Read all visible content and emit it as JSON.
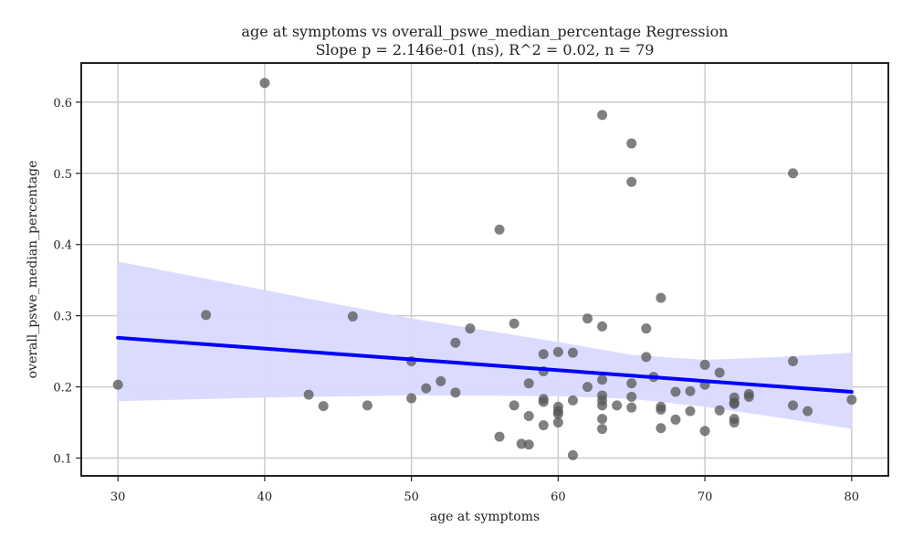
{
  "chart_data": {
    "type": "scatter",
    "title": "age at symptoms vs overall_pswe_median_percentage Regression",
    "subtitle": "Slope p = 2.146e-01 (ns), R^2 = 0.02, n = 79",
    "xlabel": "age at symptoms",
    "ylabel": "overall_pswe_median_percentage",
    "xlim": [
      27.5,
      82.5
    ],
    "ylim": [
      0.075,
      0.655
    ],
    "xticks": [
      "30",
      "40",
      "50",
      "60",
      "70",
      "80"
    ],
    "yticks": [
      "0.1",
      "0.2",
      "0.3",
      "0.4",
      "0.5",
      "0.6"
    ],
    "grid": true,
    "points": [
      [
        30,
        0.203
      ],
      [
        36,
        0.301
      ],
      [
        40,
        0.627
      ],
      [
        43,
        0.189
      ],
      [
        44,
        0.173
      ],
      [
        46,
        0.299
      ],
      [
        47,
        0.174
      ],
      [
        50,
        0.236
      ],
      [
        50,
        0.184
      ],
      [
        51,
        0.198
      ],
      [
        52,
        0.208
      ],
      [
        53,
        0.262
      ],
      [
        53,
        0.192
      ],
      [
        54,
        0.282
      ],
      [
        56,
        0.421
      ],
      [
        56,
        0.13
      ],
      [
        57,
        0.289
      ],
      [
        57,
        0.174
      ],
      [
        57.5,
        0.12
      ],
      [
        58,
        0.119
      ],
      [
        58,
        0.205
      ],
      [
        58,
        0.159
      ],
      [
        59,
        0.246
      ],
      [
        59,
        0.222
      ],
      [
        59,
        0.183
      ],
      [
        59,
        0.179
      ],
      [
        59,
        0.146
      ],
      [
        60,
        0.249
      ],
      [
        60,
        0.172
      ],
      [
        60,
        0.166
      ],
      [
        60,
        0.162
      ],
      [
        60,
        0.15
      ],
      [
        61,
        0.248
      ],
      [
        61,
        0.181
      ],
      [
        61,
        0.104
      ],
      [
        62,
        0.296
      ],
      [
        62,
        0.2
      ],
      [
        63,
        0.582
      ],
      [
        63,
        0.285
      ],
      [
        63,
        0.21
      ],
      [
        63,
        0.188
      ],
      [
        63,
        0.181
      ],
      [
        63,
        0.174
      ],
      [
        63,
        0.155
      ],
      [
        63,
        0.141
      ],
      [
        64,
        0.174
      ],
      [
        65,
        0.542
      ],
      [
        65,
        0.488
      ],
      [
        65,
        0.205
      ],
      [
        65,
        0.186
      ],
      [
        65,
        0.171
      ],
      [
        66,
        0.282
      ],
      [
        66,
        0.242
      ],
      [
        66.5,
        0.214
      ],
      [
        67,
        0.325
      ],
      [
        67,
        0.172
      ],
      [
        67,
        0.168
      ],
      [
        67,
        0.142
      ],
      [
        68,
        0.193
      ],
      [
        68,
        0.154
      ],
      [
        69,
        0.194
      ],
      [
        69,
        0.166
      ],
      [
        70,
        0.231
      ],
      [
        70,
        0.203
      ],
      [
        70,
        0.138
      ],
      [
        71,
        0.22
      ],
      [
        71,
        0.167
      ],
      [
        72,
        0.185
      ],
      [
        72,
        0.178
      ],
      [
        72,
        0.176
      ],
      [
        72,
        0.155
      ],
      [
        72,
        0.15
      ],
      [
        73,
        0.19
      ],
      [
        73,
        0.186
      ],
      [
        76,
        0.5
      ],
      [
        76,
        0.236
      ],
      [
        76,
        0.174
      ],
      [
        77,
        0.166
      ],
      [
        80,
        0.182
      ]
    ],
    "regression": {
      "x": [
        30,
        80
      ],
      "y": [
        0.269,
        0.193
      ]
    },
    "confidence_band": {
      "x": [
        30,
        40,
        50,
        60,
        65,
        70,
        75,
        80
      ],
      "upper": [
        0.376,
        0.336,
        0.296,
        0.263,
        0.245,
        0.238,
        0.242,
        0.248
      ],
      "lower": [
        0.18,
        0.185,
        0.188,
        0.187,
        0.183,
        0.172,
        0.157,
        0.141
      ]
    },
    "colors": {
      "points": "#555555",
      "line": "#0000ff",
      "band": "#d9d9ff",
      "grid": "#cccccc",
      "frame": "#222222"
    }
  }
}
